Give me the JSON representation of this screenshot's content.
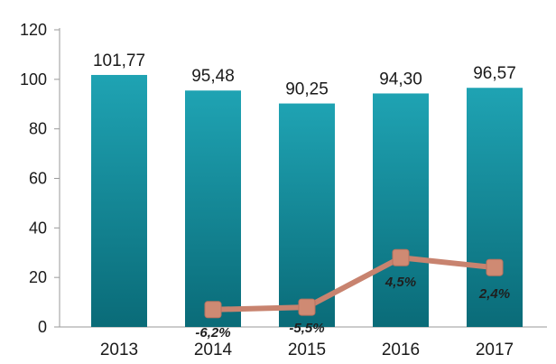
{
  "chart_data": {
    "type": "bar",
    "title": "",
    "xlabel": "",
    "ylabel": "",
    "categories": [
      "2013",
      "2014",
      "2015",
      "2016",
      "2017"
    ],
    "ylim": [
      0,
      120
    ],
    "yticks": [
      "0",
      "20",
      "40",
      "60",
      "80",
      "100",
      "120"
    ],
    "grid": false,
    "series": [
      {
        "type": "bar",
        "values": [
          101.77,
          95.48,
          90.25,
          94.3,
          96.57
        ],
        "labels": [
          "101,77",
          "95,48",
          "90,25",
          "94,30",
          "96,57"
        ]
      },
      {
        "type": "line",
        "x": [
          "2014",
          "2015",
          "2016",
          "2017"
        ],
        "values": [
          7,
          8,
          28,
          24
        ],
        "labels": [
          "-6,2%",
          "-5,5%",
          "4,5%",
          "2,4%"
        ]
      }
    ],
    "colors": {
      "bar_top": "#1fa3b3",
      "bar_bottom": "#0a6b78",
      "line": "#c8836f",
      "marker": "#cf8a73"
    }
  }
}
